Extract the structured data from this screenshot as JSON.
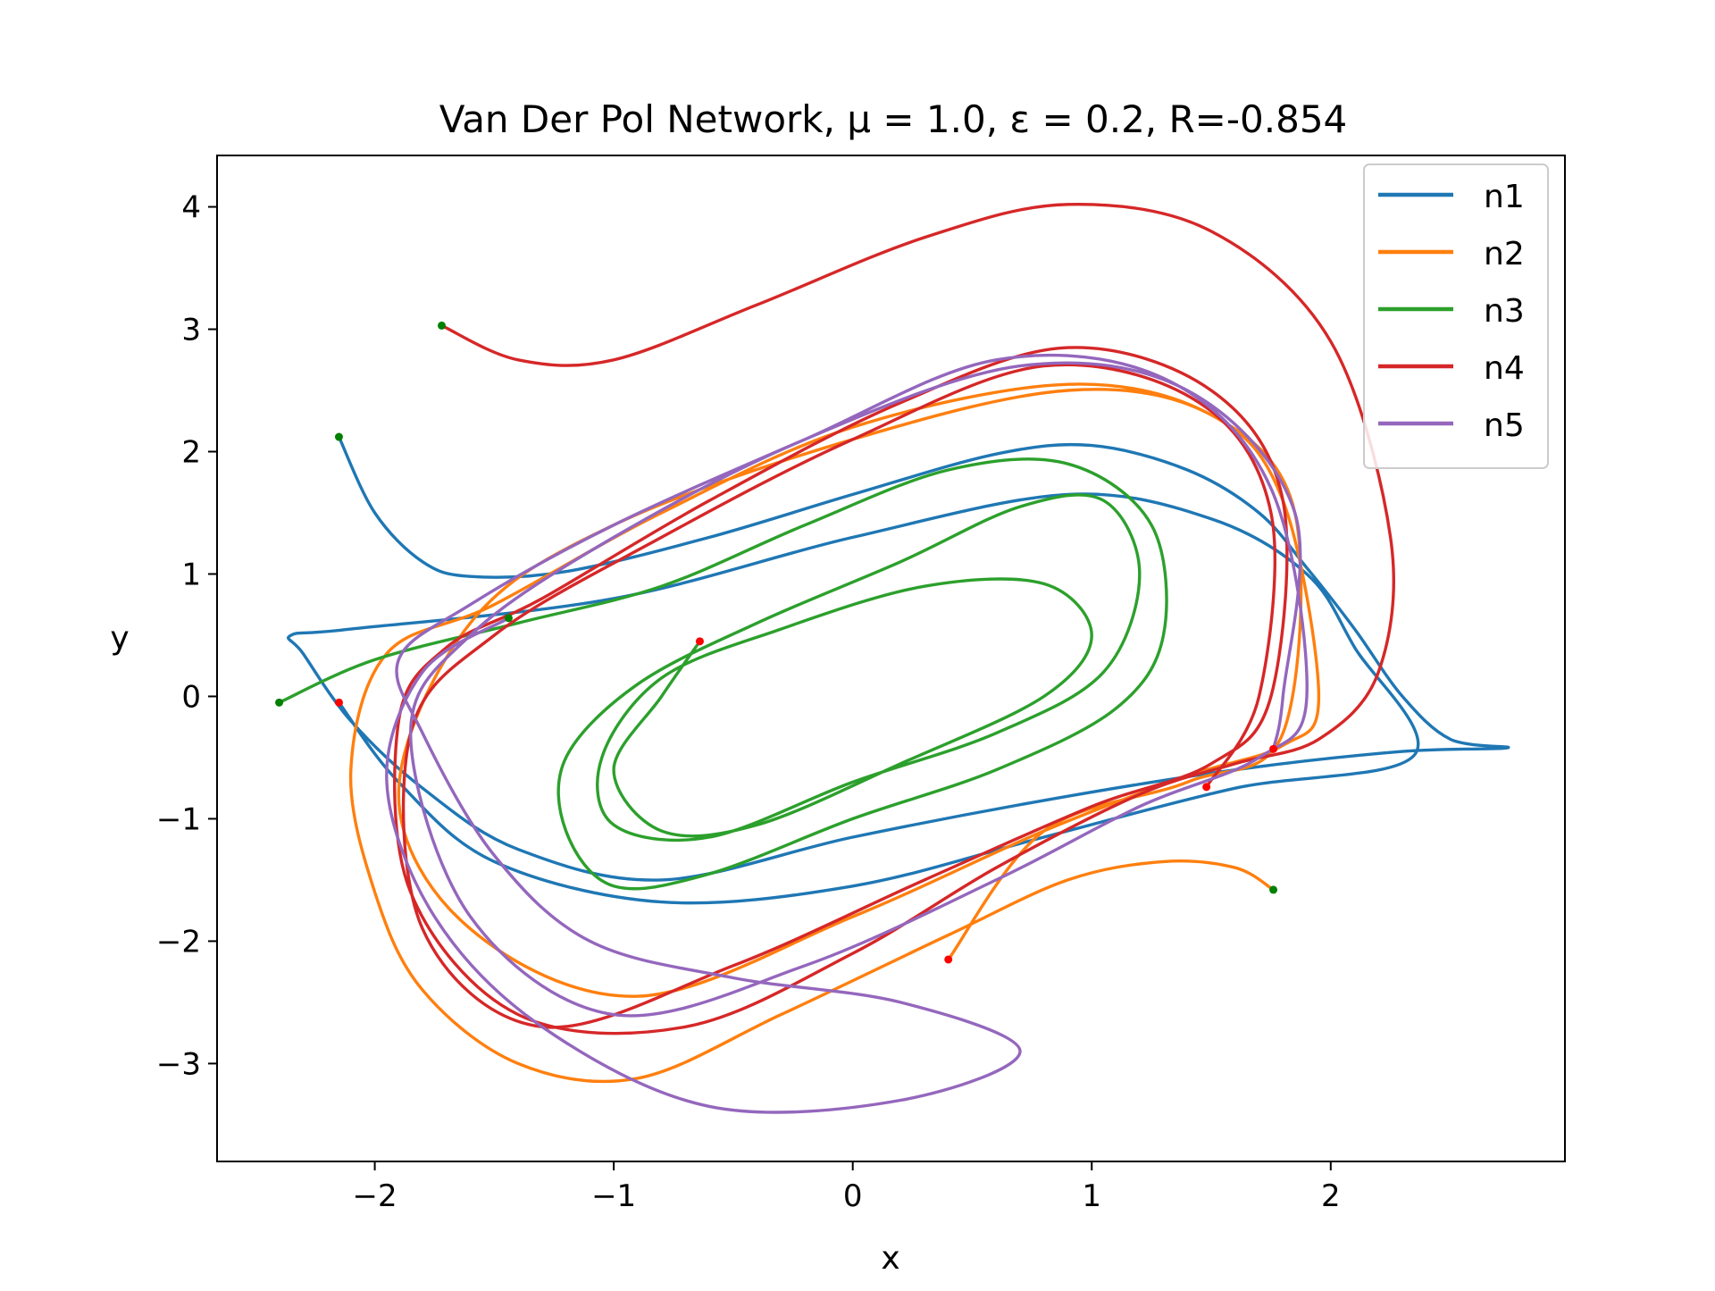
{
  "chart_data": {
    "type": "line",
    "title": "Van Der Pol Network, μ = 1.0, ε = 0.2, R=-0.854",
    "xlabel": "x",
    "ylabel": "y",
    "xlim": [
      -2.66,
      2.98
    ],
    "ylim": [
      -3.8,
      4.42
    ],
    "xticks": [
      -2,
      -1,
      0,
      1,
      2
    ],
    "xtick_labels": [
      "−2",
      "−1",
      "0",
      "1",
      "2"
    ],
    "yticks": [
      -3,
      -2,
      -1,
      0,
      1,
      2,
      3,
      4
    ],
    "ytick_labels": [
      "−3",
      "−2",
      "−1",
      "0",
      "1",
      "2",
      "3",
      "4"
    ],
    "grid": false,
    "legend_position": "top-right",
    "series": [
      {
        "name": "n1",
        "color": "#1f77b4",
        "start": [
          -2.15,
          2.12
        ],
        "end": [
          -2.15,
          -0.05
        ],
        "x": [
          -2.15,
          -2.0,
          -1.8,
          -1.6,
          -1.2,
          -0.6,
          0.0,
          0.6,
          1.0,
          1.4,
          1.7,
          1.9,
          2.1,
          2.3,
          2.5,
          2.74,
          2.3,
          1.6,
          0.8,
          0.0,
          -0.8,
          -1.4,
          -1.8,
          -2.1,
          -2.3,
          -2.35,
          -2.1,
          -1.0,
          0.0,
          0.9,
          1.5,
          1.9,
          2.1,
          2.35,
          1.6,
          0.8,
          0.0,
          -0.8,
          -1.5,
          -1.9,
          -2.15
        ],
        "y": [
          2.12,
          1.5,
          1.1,
          0.98,
          1.02,
          1.3,
          1.65,
          1.98,
          2.05,
          1.85,
          1.5,
          1.05,
          0.55,
          0.0,
          -0.35,
          -0.42,
          -0.45,
          -0.6,
          -0.85,
          -1.15,
          -1.5,
          -1.25,
          -0.75,
          -0.2,
          0.35,
          0.5,
          0.55,
          0.8,
          1.3,
          1.65,
          1.45,
          1.0,
          0.4,
          -0.48,
          -0.75,
          -1.15,
          -1.55,
          -1.68,
          -1.35,
          -0.7,
          -0.05
        ]
      },
      {
        "name": "n2",
        "color": "#ff7f0e",
        "start": [
          1.76,
          -1.58
        ],
        "end": [
          0.4,
          -2.15
        ],
        "x": [
          1.76,
          1.6,
          1.3,
          0.9,
          0.4,
          -0.3,
          -0.9,
          -1.4,
          -1.8,
          -2.0,
          -2.1,
          -1.95,
          -1.5,
          -0.8,
          0.0,
          0.9,
          1.5,
          1.8,
          1.95,
          1.8,
          1.4,
          0.8,
          0.0,
          -0.9,
          -1.6,
          -1.9,
          -1.6,
          -1.0,
          0.0,
          0.9,
          1.5,
          1.85,
          1.8,
          1.4,
          0.8,
          0.4
        ],
        "y": [
          -1.58,
          -1.4,
          -1.35,
          -1.5,
          -1.95,
          -2.6,
          -3.12,
          -3.0,
          -2.4,
          -1.6,
          -0.6,
          0.35,
          0.75,
          1.5,
          2.2,
          2.55,
          2.3,
          1.6,
          0.0,
          -0.4,
          -0.65,
          -1.1,
          -1.8,
          -2.45,
          -1.9,
          -0.8,
          0.6,
          1.4,
          2.1,
          2.5,
          2.3,
          1.5,
          -0.3,
          -0.7,
          -1.1,
          -2.15
        ]
      },
      {
        "name": "n3",
        "color": "#2ca02c",
        "start": [
          -2.4,
          -0.05
        ],
        "end": [
          -0.64,
          0.45
        ],
        "x": [
          -2.4,
          -2.0,
          -1.4,
          -0.8,
          -0.2,
          0.4,
          0.9,
          1.25,
          1.3,
          1.1,
          0.6,
          0.0,
          -0.6,
          -1.0,
          -1.2,
          -1.2,
          -0.9,
          -0.4,
          0.2,
          0.7,
          1.05,
          1.2,
          1.05,
          0.6,
          0.0,
          -0.6,
          -1.0,
          -1.05,
          -0.8,
          -0.3,
          0.3,
          0.8,
          1.0,
          0.8,
          0.2,
          -0.4,
          -0.8,
          -1.0,
          -0.8,
          -0.64
        ],
        "y": [
          -0.05,
          0.3,
          0.6,
          0.9,
          1.4,
          1.85,
          1.9,
          1.4,
          0.5,
          -0.1,
          -0.6,
          -1.0,
          -1.45,
          -1.55,
          -1.1,
          -0.5,
          0.1,
          0.6,
          1.1,
          1.55,
          1.6,
          1.0,
          0.2,
          -0.3,
          -0.7,
          -1.15,
          -1.05,
          -0.5,
          0.15,
          0.55,
          0.9,
          0.92,
          0.5,
          0.0,
          -0.55,
          -1.05,
          -1.1,
          -0.6,
          0.0,
          0.45
        ]
      },
      {
        "name": "n4",
        "color": "#d62728",
        "start": [
          -1.72,
          3.03
        ],
        "end": [
          1.48,
          -0.74
        ],
        "x": [
          -1.72,
          -1.4,
          -1.0,
          -0.4,
          0.3,
          0.9,
          1.5,
          2.0,
          2.25,
          2.2,
          1.95,
          1.6,
          1.2,
          0.6,
          0.0,
          -0.7,
          -1.4,
          -1.85,
          -1.9,
          -1.7,
          -1.3,
          -0.6,
          0.2,
          0.9,
          1.5,
          1.8,
          1.75,
          1.5,
          1.0,
          0.3,
          -0.5,
          -1.3,
          -1.8,
          -1.85,
          -1.5,
          -0.8,
          0.0,
          0.8,
          1.45,
          1.75,
          1.7,
          1.48
        ],
        "y": [
          3.03,
          2.75,
          2.75,
          3.2,
          3.75,
          4.02,
          3.8,
          2.9,
          1.3,
          0.2,
          -0.35,
          -0.55,
          -0.8,
          -1.4,
          -2.1,
          -2.7,
          -2.6,
          -1.6,
          -0.2,
          0.4,
          0.8,
          1.6,
          2.4,
          2.85,
          2.5,
          1.6,
          0.0,
          -0.55,
          -0.9,
          -1.5,
          -2.2,
          -2.7,
          -1.9,
          -0.3,
          0.5,
          1.3,
          2.1,
          2.7,
          2.4,
          1.5,
          0.0,
          -0.74
        ]
      },
      {
        "name": "n5",
        "color": "#9467bd",
        "start": [
          -1.44,
          0.64
        ],
        "end": [
          1.76,
          -0.43
        ],
        "x": [
          -1.44,
          -1.8,
          -1.95,
          -1.75,
          -1.3,
          -0.6,
          0.2,
          0.7,
          0.2,
          -0.5,
          -1.1,
          -1.5,
          -1.8,
          -1.9,
          -1.6,
          -1.0,
          -0.2,
          0.6,
          1.3,
          1.75,
          1.9,
          1.7,
          1.2,
          0.6,
          -0.2,
          -1.0,
          -1.6,
          -1.85,
          -1.6,
          -1.0,
          -0.2,
          0.7,
          1.4,
          1.85,
          1.8,
          1.76
        ],
        "y": [
          0.64,
          0.2,
          -0.7,
          -1.8,
          -2.7,
          -3.35,
          -3.3,
          -2.9,
          -2.5,
          -2.3,
          -2.0,
          -1.3,
          -0.3,
          0.3,
          0.75,
          1.4,
          2.1,
          2.75,
          2.6,
          1.7,
          0.0,
          -0.5,
          -0.9,
          -1.5,
          -2.2,
          -2.6,
          -1.8,
          -0.3,
          0.5,
          1.3,
          2.1,
          2.7,
          2.5,
          1.5,
          0.0,
          -0.43
        ]
      }
    ]
  }
}
